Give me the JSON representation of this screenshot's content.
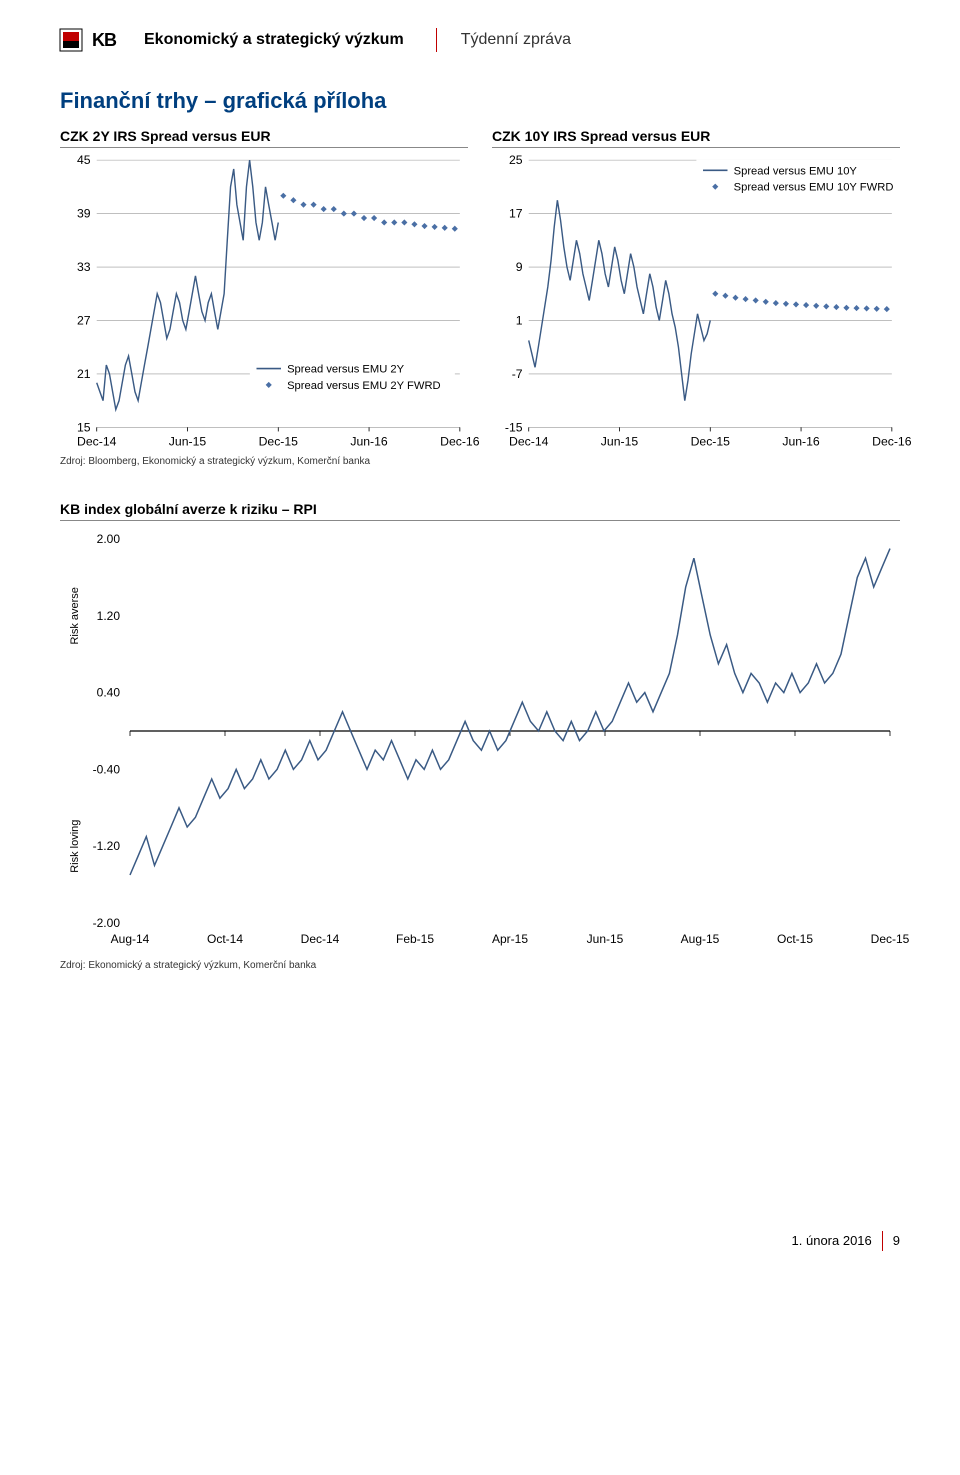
{
  "header": {
    "logo_label": "KB",
    "title": "Ekonomický a strategický výzkum",
    "subtitle": "Týdenní zpráva"
  },
  "section_title": "Finanční trhy – grafická příloha",
  "left_chart": {
    "title": "CZK 2Y IRS Spread versus EUR",
    "type": "line",
    "y_ticks": [
      15,
      21,
      27,
      33,
      39,
      45
    ],
    "x_labels": [
      "Dec-14",
      "Jun-15",
      "Dec-15",
      "Jun-16",
      "Dec-16"
    ],
    "legend_line": "Spread versus EMU 2Y",
    "legend_fwrd": "Spread versus EMU 2Y FWRD",
    "line_color": "#3a5a84",
    "fwrd_color": "#4a6fa5",
    "grid_color": "#999999",
    "line_data": [
      20,
      19,
      18,
      22,
      21,
      19,
      17,
      18,
      20,
      22,
      23,
      21,
      19,
      18,
      20,
      22,
      24,
      26,
      28,
      30,
      29,
      27,
      25,
      26,
      28,
      30,
      29,
      27,
      26,
      28,
      30,
      32,
      30,
      28,
      27,
      29,
      30,
      28,
      26,
      28,
      30,
      36,
      42,
      44,
      40,
      38,
      36,
      42,
      45,
      42,
      38,
      36,
      38,
      42,
      40,
      38,
      36,
      38
    ],
    "fwrd_data": [
      41,
      40.5,
      40,
      40,
      39.5,
      39.5,
      39,
      39,
      38.5,
      38.5,
      38,
      38,
      38,
      37.8,
      37.6,
      37.5,
      37.4,
      37.3
    ]
  },
  "right_chart": {
    "title": "CZK 10Y IRS Spread versus EUR",
    "type": "line",
    "y_ticks": [
      -15,
      -7,
      1,
      9,
      17,
      25
    ],
    "x_labels": [
      "Dec-14",
      "Jun-15",
      "Dec-15",
      "Jun-16",
      "Dec-16"
    ],
    "legend_line": "Spread versus EMU 10Y",
    "legend_fwrd": "Spread versus EMU 10Y FWRD",
    "line_color": "#3a5a84",
    "fwrd_color": "#4a6fa5",
    "grid_color": "#999999",
    "line_data": [
      -2,
      -4,
      -6,
      -3,
      0,
      3,
      6,
      10,
      15,
      19,
      16,
      12,
      9,
      7,
      10,
      13,
      11,
      8,
      6,
      4,
      7,
      10,
      13,
      11,
      8,
      6,
      9,
      12,
      10,
      7,
      5,
      8,
      11,
      9,
      6,
      4,
      2,
      5,
      8,
      6,
      3,
      1,
      4,
      7,
      5,
      2,
      0,
      -3,
      -7,
      -11,
      -8,
      -4,
      -1,
      2,
      0,
      -2,
      -1,
      1
    ],
    "fwrd_data": [
      5,
      4.7,
      4.4,
      4.2,
      4,
      3.8,
      3.6,
      3.5,
      3.4,
      3.3,
      3.2,
      3.1,
      3,
      2.9,
      2.85,
      2.8,
      2.75,
      2.7
    ]
  },
  "source_small": "Zdroj: Bloomberg, Ekonomický a strategický výzkum, Komerční banka",
  "rpi_chart": {
    "title": "KB index globální averze k riziku – RPI",
    "type": "line",
    "y_ticks": [
      -2.0,
      -1.2,
      -0.4,
      0.4,
      1.2,
      2.0
    ],
    "y_tick_labels": [
      "-2.00",
      "-1.20",
      "-0.40",
      "0.40",
      "1.20",
      "2.00"
    ],
    "x_labels": [
      "Aug-14",
      "Oct-14",
      "Dec-14",
      "Feb-15",
      "Apr-15",
      "Jun-15",
      "Aug-15",
      "Oct-15",
      "Dec-15"
    ],
    "ylabel_top": "Risk averse",
    "ylabel_bottom": "Risk loving",
    "line_color": "#3a5a84",
    "grid_color": "#999999",
    "zero_color": "#000000",
    "line_data": [
      -1.5,
      -1.3,
      -1.1,
      -1.4,
      -1.2,
      -1.0,
      -0.8,
      -1.0,
      -0.9,
      -0.7,
      -0.5,
      -0.7,
      -0.6,
      -0.4,
      -0.6,
      -0.5,
      -0.3,
      -0.5,
      -0.4,
      -0.2,
      -0.4,
      -0.3,
      -0.1,
      -0.3,
      -0.2,
      0.0,
      0.2,
      0.0,
      -0.2,
      -0.4,
      -0.2,
      -0.3,
      -0.1,
      -0.3,
      -0.5,
      -0.3,
      -0.4,
      -0.2,
      -0.4,
      -0.3,
      -0.1,
      0.1,
      -0.1,
      -0.2,
      0.0,
      -0.2,
      -0.1,
      0.1,
      0.3,
      0.1,
      0.0,
      0.2,
      0.0,
      -0.1,
      0.1,
      -0.1,
      0.0,
      0.2,
      0.0,
      0.1,
      0.3,
      0.5,
      0.3,
      0.4,
      0.2,
      0.4,
      0.6,
      1.0,
      1.5,
      1.8,
      1.4,
      1.0,
      0.7,
      0.9,
      0.6,
      0.4,
      0.6,
      0.5,
      0.3,
      0.5,
      0.4,
      0.6,
      0.4,
      0.5,
      0.7,
      0.5,
      0.6,
      0.8,
      1.2,
      1.6,
      1.8,
      1.5,
      1.7,
      1.9
    ]
  },
  "source_rpi": "Zdroj: Ekonomický a strategický výzkum, Komerční banka",
  "footer": {
    "date": "1. února 2016",
    "page": "9"
  },
  "colors": {
    "accent_red": "#c00000",
    "link_blue": "#003f7f",
    "bg": "#ffffff"
  }
}
